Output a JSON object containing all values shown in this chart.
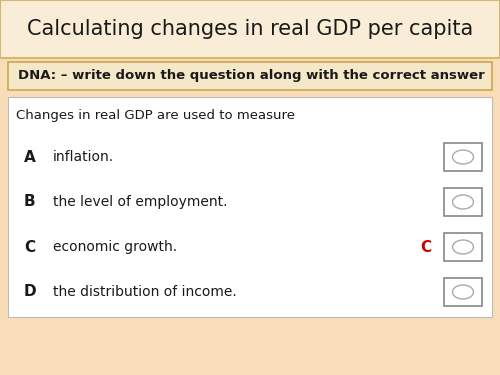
{
  "title": "Calculating changes in real GDP per capita",
  "dna_text": "DNA: – write down the question along with the correct answer",
  "question": "Changes in real GDP are used to measure",
  "options": [
    {
      "letter": "A",
      "text": "inflation."
    },
    {
      "letter": "B",
      "text": "the level of employment."
    },
    {
      "letter": "C",
      "text": "economic growth."
    },
    {
      "letter": "D",
      "text": "the distribution of income."
    }
  ],
  "correct_letter": "C",
  "bg_color": "#f9ddb8",
  "title_bg": "#f9edd8",
  "title_border": "#d4b870",
  "dna_bg": "#f5e8c8",
  "dna_border": "#c8a850",
  "question_bg": "#ffffff",
  "question_border": "#bbbbbb",
  "title_fontsize": 15,
  "dna_fontsize": 9.5,
  "question_fontsize": 9.5,
  "option_letter_fontsize": 11,
  "option_text_fontsize": 10,
  "correct_color": "#cc0000",
  "text_color": "#1a1a1a",
  "checkbox_color": "#888888",
  "ellipse_color": "#aaaaaa"
}
